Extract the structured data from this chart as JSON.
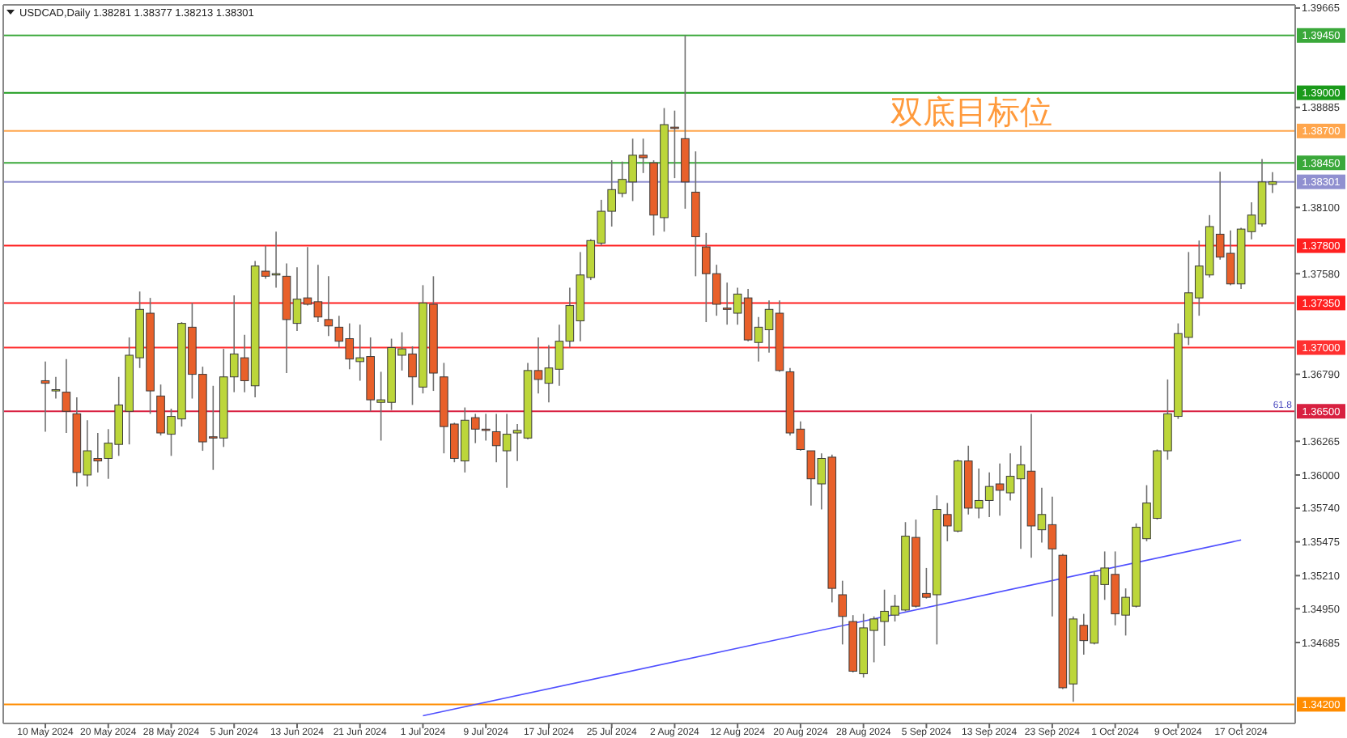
{
  "chart_data": {
    "type": "candlestick",
    "title": "USDCAD,Daily  1.38281 1.38377 1.38213 1.38301",
    "categories": [
      "10 May 2024",
      null,
      null,
      null,
      null,
      null,
      "20 May 2024",
      null,
      null,
      null,
      null,
      null,
      "28 May 2024",
      null,
      null,
      null,
      null,
      null,
      "5 Jun 2024",
      null,
      null,
      null,
      null,
      null,
      "13 Jun 2024",
      null,
      null,
      null,
      null,
      null,
      "21 Jun 2024",
      null,
      null,
      null,
      null,
      null,
      "1 Jul 2024",
      null,
      null,
      null,
      null,
      null,
      "9 Jul 2024",
      null,
      null,
      null,
      null,
      null,
      "17 Jul 2024",
      null,
      null,
      null,
      null,
      null,
      "25 Jul 2024",
      null,
      null,
      null,
      null,
      null,
      "2 Aug 2024",
      null,
      null,
      null,
      null,
      null,
      "12 Aug 2024",
      null,
      null,
      null,
      null,
      null,
      "20 Aug 2024",
      null,
      null,
      null,
      null,
      null,
      "28 Aug 2024",
      null,
      null,
      null,
      null,
      null,
      "5 Sep 2024",
      null,
      null,
      null,
      null,
      null,
      "13 Sep 2024",
      null,
      null,
      null,
      null,
      null,
      "23 Sep 2024",
      null,
      null,
      null,
      null,
      null,
      "1 Oct 2024",
      null,
      null,
      null,
      null,
      null,
      "9 Oct 2024",
      null,
      null,
      null,
      null,
      null,
      "17 Oct 2024",
      null,
      null,
      null
    ],
    "ohlc": [
      [
        1.3674,
        1.3689,
        1.3634,
        1.3672
      ],
      [
        1.3666,
        1.3677,
        1.366,
        1.3667
      ],
      [
        1.3665,
        1.3691,
        1.3633,
        1.365
      ],
      [
        1.3648,
        1.3661,
        1.3591,
        1.3602
      ],
      [
        1.36,
        1.3643,
        1.3591,
        1.3619
      ],
      [
        1.3613,
        1.3633,
        1.3602,
        1.3611
      ],
      [
        1.3613,
        1.3636,
        1.3597,
        1.3625
      ],
      [
        1.3624,
        1.3677,
        1.3615,
        1.3655
      ],
      [
        1.365,
        1.3708,
        1.3624,
        1.3694
      ],
      [
        1.3692,
        1.3744,
        1.3684,
        1.373
      ],
      [
        1.3727,
        1.3739,
        1.3648,
        1.3666
      ],
      [
        1.3662,
        1.3671,
        1.3631,
        1.3633
      ],
      [
        1.3632,
        1.3652,
        1.3615,
        1.3646
      ],
      [
        1.3644,
        1.372,
        1.3638,
        1.3719
      ],
      [
        1.3716,
        1.3735,
        1.366,
        1.3679
      ],
      [
        1.3679,
        1.3685,
        1.3619,
        1.3626
      ],
      [
        1.363,
        1.367,
        1.3604,
        1.3629
      ],
      [
        1.3629,
        1.3699,
        1.3622,
        1.3677
      ],
      [
        1.3677,
        1.3741,
        1.3665,
        1.3695
      ],
      [
        1.3692,
        1.371,
        1.3665,
        1.3674
      ],
      [
        1.367,
        1.3768,
        1.3661,
        1.3764
      ],
      [
        1.376,
        1.378,
        1.3754,
        1.3756
      ],
      [
        1.3757,
        1.3791,
        1.3747,
        1.3758
      ],
      [
        1.3756,
        1.3766,
        1.368,
        1.3722
      ],
      [
        1.3719,
        1.3763,
        1.3713,
        1.3738
      ],
      [
        1.3739,
        1.3779,
        1.3733,
        1.3734
      ],
      [
        1.3736,
        1.3765,
        1.372,
        1.3724
      ],
      [
        1.3722,
        1.3756,
        1.3709,
        1.3717
      ],
      [
        1.3716,
        1.3725,
        1.37,
        1.3705
      ],
      [
        1.3707,
        1.3719,
        1.3683,
        1.3691
      ],
      [
        1.3689,
        1.3718,
        1.3674,
        1.3692
      ],
      [
        1.3693,
        1.3708,
        1.365,
        1.3659
      ],
      [
        1.3657,
        1.3681,
        1.3627,
        1.3659
      ],
      [
        1.3657,
        1.3707,
        1.3651,
        1.37
      ],
      [
        1.3694,
        1.3712,
        1.3682,
        1.3699
      ],
      [
        1.3695,
        1.3701,
        1.3655,
        1.3677
      ],
      [
        1.3669,
        1.3749,
        1.3664,
        1.3735
      ],
      [
        1.3734,
        1.3756,
        1.3666,
        1.368
      ],
      [
        1.3677,
        1.3688,
        1.3617,
        1.3638
      ],
      [
        1.364,
        1.3641,
        1.361,
        1.3613
      ],
      [
        1.3611,
        1.3653,
        1.3602,
        1.3643
      ],
      [
        1.3645,
        1.3648,
        1.3625,
        1.3636
      ],
      [
        1.3636,
        1.3648,
        1.3627,
        1.3635
      ],
      [
        1.3634,
        1.3648,
        1.361,
        1.3623
      ],
      [
        1.3619,
        1.3648,
        1.359,
        1.3632
      ],
      [
        1.3633,
        1.364,
        1.3611,
        1.3635
      ],
      [
        1.3629,
        1.3688,
        1.3628,
        1.3682
      ],
      [
        1.3682,
        1.3708,
        1.3664,
        1.3675
      ],
      [
        1.3672,
        1.3702,
        1.3657,
        1.3684
      ],
      [
        1.3683,
        1.3718,
        1.367,
        1.3705
      ],
      [
        1.3705,
        1.3747,
        1.37,
        1.3733
      ],
      [
        1.3721,
        1.3775,
        1.3705,
        1.3757
      ],
      [
        1.3755,
        1.3785,
        1.3753,
        1.3784
      ],
      [
        1.3782,
        1.3816,
        1.378,
        1.3807
      ],
      [
        1.3807,
        1.3847,
        1.3795,
        1.3824
      ],
      [
        1.3821,
        1.3846,
        1.3818,
        1.3832
      ],
      [
        1.383,
        1.3864,
        1.3815,
        1.3851
      ],
      [
        1.3851,
        1.3864,
        1.3837,
        1.3849
      ],
      [
        1.3845,
        1.3847,
        1.3788,
        1.3804
      ],
      [
        1.3802,
        1.3888,
        1.3791,
        1.3875
      ],
      [
        1.3873,
        1.3886,
        1.3833,
        1.3872
      ],
      [
        1.3864,
        1.3945,
        1.3809,
        1.383
      ],
      [
        1.3822,
        1.3854,
        1.3756,
        1.3787
      ],
      [
        1.3779,
        1.379,
        1.372,
        1.3758
      ],
      [
        1.3758,
        1.3765,
        1.3725,
        1.3734
      ],
      [
        1.3731,
        1.3751,
        1.3718,
        1.373
      ],
      [
        1.3727,
        1.3747,
        1.3718,
        1.3742
      ],
      [
        1.3739,
        1.3746,
        1.3705,
        1.3706
      ],
      [
        1.3704,
        1.3724,
        1.3689,
        1.3716
      ],
      [
        1.3714,
        1.3737,
        1.3696,
        1.373
      ],
      [
        1.3727,
        1.3737,
        1.3681,
        1.3682
      ],
      [
        1.3681,
        1.3684,
        1.3631,
        1.3633
      ],
      [
        1.3636,
        1.3642,
        1.3619,
        1.362
      ],
      [
        1.3619,
        1.3619,
        1.3576,
        1.3597
      ],
      [
        1.3593,
        1.3617,
        1.3573,
        1.3613
      ],
      [
        1.3614,
        1.3616,
        1.35,
        1.3511
      ],
      [
        1.3506,
        1.3517,
        1.3467,
        1.3489
      ],
      [
        1.3485,
        1.349,
        1.3445,
        1.3446
      ],
      [
        1.3444,
        1.3491,
        1.3441,
        1.348
      ],
      [
        1.3478,
        1.3489,
        1.3453,
        1.3487
      ],
      [
        1.3485,
        1.351,
        1.3466,
        1.3493
      ],
      [
        1.349,
        1.3506,
        1.3485,
        1.3497
      ],
      [
        1.3494,
        1.3563,
        1.3493,
        1.3552
      ],
      [
        1.3551,
        1.3565,
        1.3496,
        1.3497
      ],
      [
        1.3507,
        1.3527,
        1.3503,
        1.3504
      ],
      [
        1.3506,
        1.3584,
        1.3467,
        1.3573
      ],
      [
        1.3569,
        1.3578,
        1.3548,
        1.356
      ],
      [
        1.3556,
        1.3612,
        1.3555,
        1.3611
      ],
      [
        1.3611,
        1.3623,
        1.3569,
        1.3574
      ],
      [
        1.3574,
        1.3605,
        1.3566,
        1.358
      ],
      [
        1.358,
        1.3602,
        1.3567,
        1.3591
      ],
      [
        1.3593,
        1.3609,
        1.3568,
        1.3588
      ],
      [
        1.3586,
        1.3617,
        1.358,
        1.3599
      ],
      [
        1.3597,
        1.3623,
        1.3542,
        1.3608
      ],
      [
        1.3603,
        1.3648,
        1.3535,
        1.356
      ],
      [
        1.3557,
        1.359,
        1.3547,
        1.3569
      ],
      [
        1.3561,
        1.3583,
        1.3489,
        1.3542
      ],
      [
        1.3537,
        1.3538,
        1.3432,
        1.3433
      ],
      [
        1.3436,
        1.3489,
        1.3422,
        1.3487
      ],
      [
        1.3482,
        1.3491,
        1.3459,
        1.347
      ],
      [
        1.3468,
        1.3524,
        1.3467,
        1.3521
      ],
      [
        1.3514,
        1.354,
        1.3502,
        1.3527
      ],
      [
        1.3522,
        1.354,
        1.3482,
        1.3491
      ],
      [
        1.349,
        1.3511,
        1.3474,
        1.3504
      ],
      [
        1.3497,
        1.3562,
        1.3496,
        1.3559
      ],
      [
        1.355,
        1.3592,
        1.3548,
        1.3578
      ],
      [
        1.3566,
        1.362,
        1.3565,
        1.3619
      ],
      [
        1.3619,
        1.3675,
        1.3612,
        1.3648
      ],
      [
        1.3646,
        1.3719,
        1.3644,
        1.3711
      ],
      [
        1.3708,
        1.3775,
        1.3702,
        1.3743
      ],
      [
        1.3739,
        1.3784,
        1.3725,
        1.3764
      ],
      [
        1.3757,
        1.3804,
        1.3755,
        1.3795
      ],
      [
        1.3789,
        1.3838,
        1.3769,
        1.3771
      ],
      [
        1.3774,
        1.3792,
        1.3749,
        1.375
      ],
      [
        1.375,
        1.3794,
        1.3746,
        1.3793
      ],
      [
        1.3791,
        1.3814,
        1.3785,
        1.3804
      ],
      [
        1.3797,
        1.3848,
        1.3795,
        1.383
      ],
      [
        1.38281,
        1.38377,
        1.38213,
        1.38301
      ]
    ],
    "colors": [
      "#e8602a",
      "#bcd63a",
      "#e8602a",
      "#e8602a",
      "#bcd63a",
      "#e8602a",
      "#bcd63a",
      "#bcd63a",
      "#bcd63a",
      "#bcd63a",
      "#e8602a",
      "#e8602a",
      "#bcd63a",
      "#bcd63a",
      "#e8602a",
      "#e8602a",
      "#e8602a",
      "#bcd63a",
      "#bcd63a",
      "#e8602a",
      "#bcd63a",
      "#e8602a",
      "#bcd63a",
      "#e8602a",
      "#bcd63a",
      "#e8602a",
      "#e8602a",
      "#e8602a",
      "#e8602a",
      "#e8602a",
      "#bcd63a",
      "#e8602a",
      "#bcd63a",
      "#bcd63a",
      "#bcd63a",
      "#e8602a",
      "#bcd63a",
      "#e8602a",
      "#e8602a",
      "#e8602a",
      "#bcd63a",
      "#e8602a",
      "#e8602a",
      "#e8602a",
      "#bcd63a",
      "#bcd63a",
      "#bcd63a",
      "#e8602a",
      "#bcd63a",
      "#bcd63a",
      "#bcd63a",
      "#bcd63a",
      "#bcd63a",
      "#bcd63a",
      "#bcd63a",
      "#bcd63a",
      "#bcd63a",
      "#e8602a",
      "#e8602a",
      "#bcd63a",
      "#e8602a",
      "#e8602a",
      "#e8602a",
      "#e8602a",
      "#e8602a",
      "#e8602a",
      "#bcd63a",
      "#e8602a",
      "#bcd63a",
      "#bcd63a",
      "#e8602a",
      "#e8602a",
      "#e8602a",
      "#e8602a",
      "#bcd63a",
      "#e8602a",
      "#e8602a",
      "#e8602a",
      "#bcd63a",
      "#bcd63a",
      "#bcd63a",
      "#bcd63a",
      "#bcd63a",
      "#e8602a",
      "#e8602a",
      "#bcd63a",
      "#e8602a",
      "#bcd63a",
      "#e8602a",
      "#bcd63a",
      "#bcd63a",
      "#e8602a",
      "#bcd63a",
      "#bcd63a",
      "#e8602a",
      "#bcd63a",
      "#e8602a",
      "#e8602a",
      "#bcd63a",
      "#e8602a",
      "#bcd63a",
      "#bcd63a",
      "#e8602a",
      "#bcd63a",
      "#bcd63a",
      "#bcd63a",
      "#bcd63a",
      "#bcd63a",
      "#bcd63a",
      "#bcd63a",
      "#bcd63a",
      "#bcd63a",
      "#e8602a",
      "#e8602a",
      "#bcd63a",
      "#bcd63a",
      "#bcd63a",
      "#bcd63a"
    ],
    "series": [
      {
        "type": "line",
        "x": [
          "1 Jul 2024",
          "17 Oct 2024"
        ],
        "values": [
          1.3411,
          1.3549
        ],
        "color": "#5050ff"
      }
    ],
    "ylim": [
      1.3405,
      1.3969
    ],
    "yticks": [
      1.39665,
      1.38885,
      {
        "value": 1.381,
        "label": "1.38100"
      },
      {
        "value": 1.3758,
        "label": "1.37580"
      },
      {
        "value": 1.3679,
        "label": "1.36790"
      },
      1.36265,
      {
        "value": 1.36,
        "label": "1.36000"
      },
      {
        "value": 1.3574,
        "label": "1.35740"
      },
      1.35475,
      {
        "value": 1.3521,
        "label": "1.35210"
      },
      {
        "value": 1.3495,
        "label": "1.34950"
      },
      1.34685
    ],
    "ref_lines": [
      {
        "axis": "y",
        "value": 1.3945,
        "label": "1.39450",
        "color": "#3aa83a"
      },
      {
        "axis": "y",
        "value": 1.39,
        "label": "1.39000",
        "color": "#1a9a1a"
      },
      {
        "axis": "y",
        "value": 1.387,
        "label": "1.38700",
        "color": "#ffa64d"
      },
      {
        "axis": "y",
        "value": 1.3845,
        "label": "1.38450",
        "color": "#3aa83a"
      },
      {
        "axis": "y",
        "value": 1.38301,
        "label": "1.38301",
        "color": "#9090d0"
      },
      {
        "axis": "y",
        "value": 1.378,
        "label": "1.37800",
        "color": "#ff2020"
      },
      {
        "axis": "y",
        "value": 1.3735,
        "label": "1.37350",
        "color": "#ff2020"
      },
      {
        "axis": "y",
        "value": 1.37,
        "label": "1.37000",
        "color": "#ff3030"
      },
      {
        "axis": "y",
        "value": 1.365,
        "label": "1.36500",
        "color": "#d82040"
      },
      {
        "axis": "y",
        "value": 1.342,
        "label": "1.34200",
        "color": "#ff8c00"
      }
    ],
    "annotations": [
      "双底目标位",
      {
        "text": "61.8",
        "y": 1.365
      }
    ],
    "grid": false
  }
}
